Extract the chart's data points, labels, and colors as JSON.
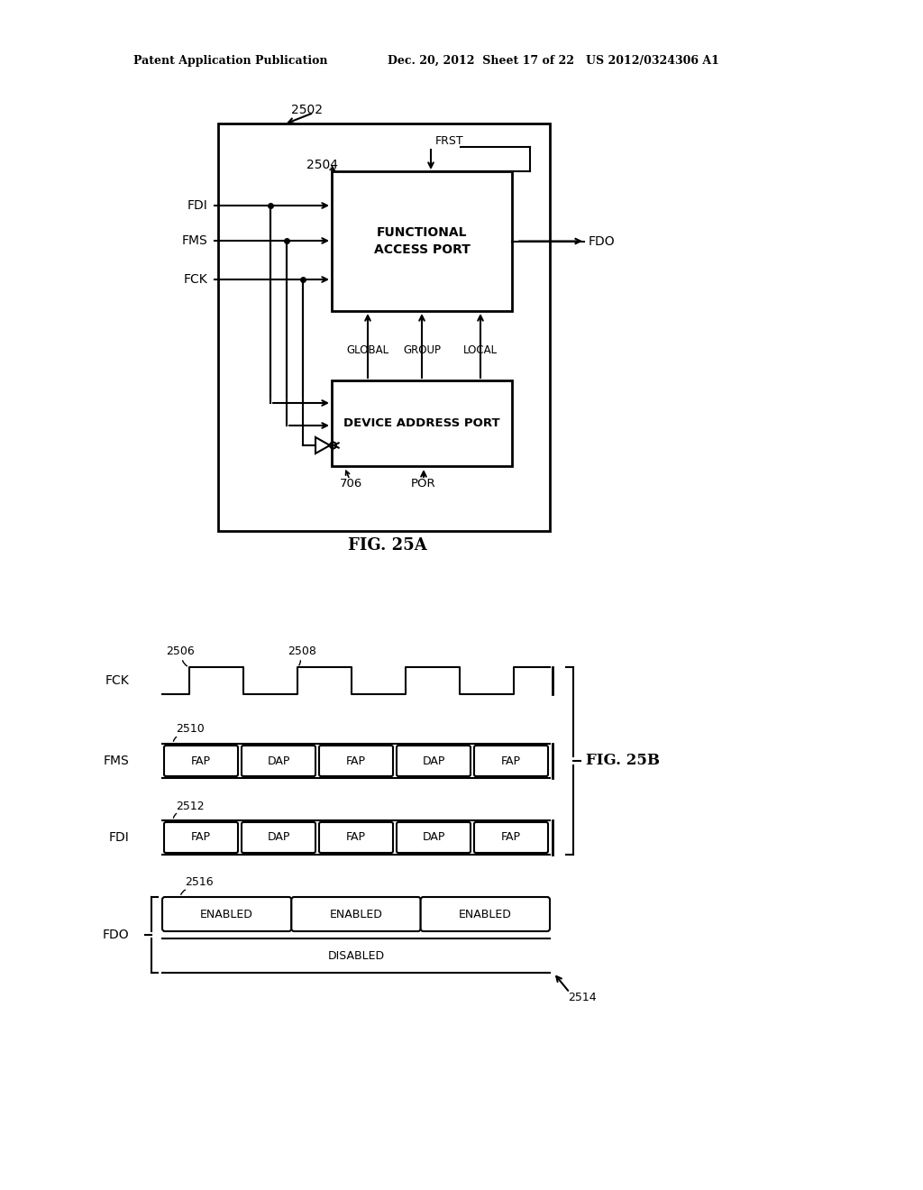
{
  "bg_color": "#ffffff",
  "line_color": "#000000",
  "header_left": "Patent Application Publication",
  "header_mid": "Dec. 20, 2012  Sheet 17 of 22",
  "header_right": "US 2012/0324306 A1",
  "fig25a_label": "FIG. 25A",
  "fig25b_label": "FIG. 25B",
  "label_2502": "2502",
  "label_2504": "2504",
  "label_frst": "FRST",
  "label_functional": "FUNCTIONAL\nACCESS PORT",
  "label_fdi": "FDI",
  "label_fms": "FMS",
  "label_fck": "FCK",
  "label_fdo": "FDO",
  "label_global": "GLOBAL",
  "label_group": "GROUP",
  "label_local": "LOCAL",
  "label_device": "DEVICE ADDRESS PORT",
  "label_706": "706",
  "label_por": "POR",
  "label_2506": "2506",
  "label_2508": "2508",
  "label_2510": "2510",
  "label_2512": "2512",
  "label_2516": "2516",
  "label_2514": "2514",
  "label_fck_signal": "FCK",
  "label_fms_signal": "FMS",
  "label_fdi_signal": "FDI",
  "label_fdo_signal": "FDO",
  "segments_fms": [
    "FAP",
    "DAP",
    "FAP",
    "DAP",
    "FAP"
  ],
  "segments_fdi": [
    "FAP",
    "DAP",
    "FAP",
    "DAP",
    "FAP"
  ],
  "segments_enabled": [
    "ENABLED",
    "ENABLED",
    "ENABLED"
  ],
  "segment_disabled": "DISABLED"
}
